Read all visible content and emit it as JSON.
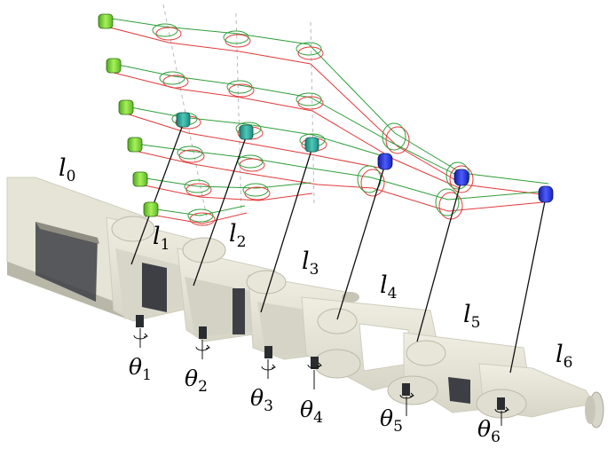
{
  "links": [
    {
      "symbol": "l",
      "index": "0"
    },
    {
      "symbol": "l",
      "index": "1"
    },
    {
      "symbol": "l",
      "index": "2"
    },
    {
      "symbol": "l",
      "index": "3"
    },
    {
      "symbol": "l",
      "index": "4"
    },
    {
      "symbol": "l",
      "index": "5"
    },
    {
      "symbol": "l",
      "index": "6"
    }
  ],
  "joints": [
    {
      "symbol": "θ",
      "index": "1"
    },
    {
      "symbol": "θ",
      "index": "2"
    },
    {
      "symbol": "θ",
      "index": "3"
    },
    {
      "symbol": "θ",
      "index": "4"
    },
    {
      "symbol": "θ",
      "index": "5"
    },
    {
      "symbol": "θ",
      "index": "6"
    }
  ],
  "colors": {
    "arm_face": "#e6e4d6",
    "arm_side": "#b9b7a8",
    "arm_dark": "#3d3f45",
    "tendon_green": "#2f9e3a",
    "tendon_red": "#e23a3a",
    "motor_green": "#7fd63a",
    "motor_teal": "#2aa89a",
    "motor_blue": "#2430d8"
  }
}
